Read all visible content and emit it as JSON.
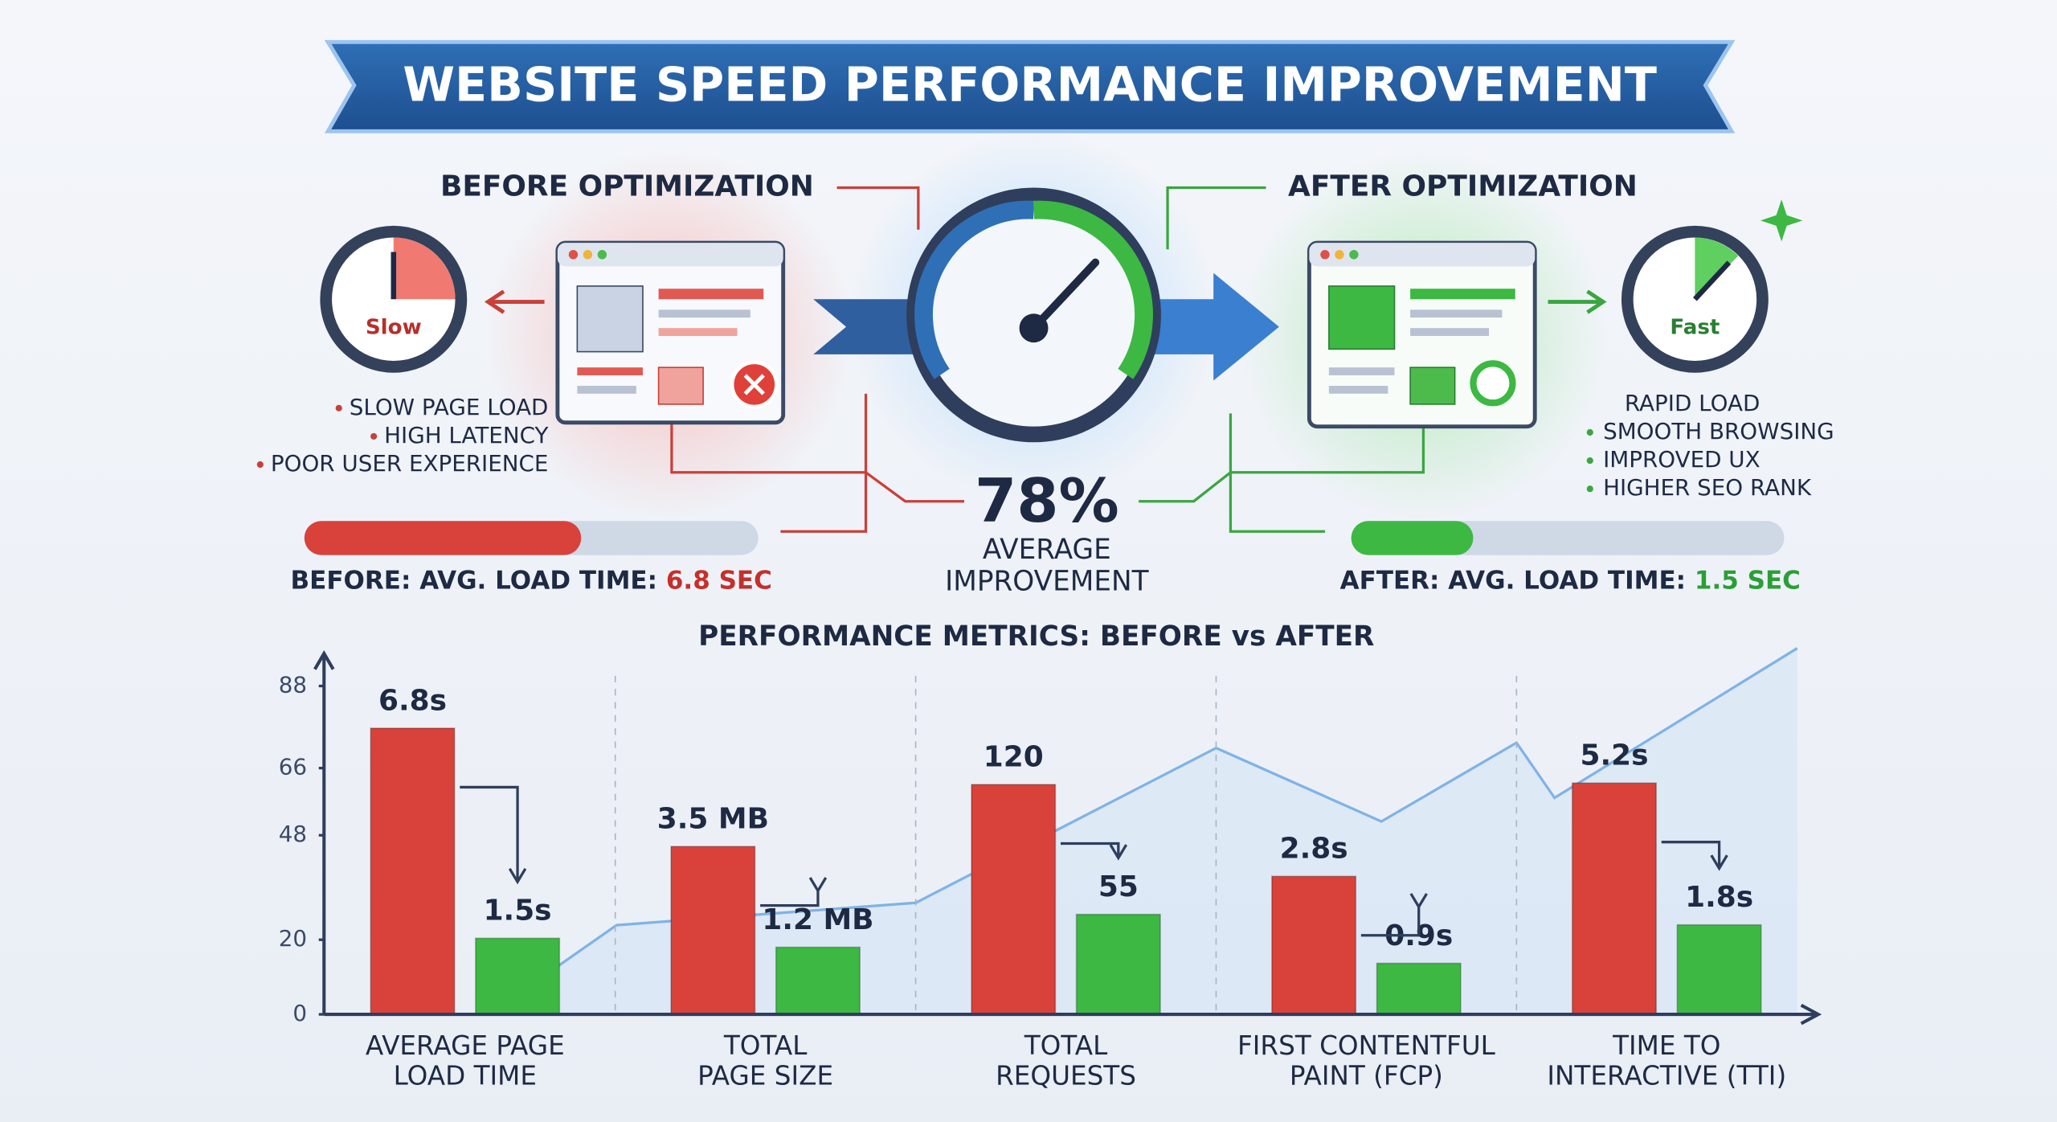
{
  "header": {
    "title": "WEBSITE SPEED PERFORMANCE IMPROVEMENT"
  },
  "before": {
    "heading": "BEFORE OPTIMIZATION",
    "clock_label": "Slow",
    "points": [
      "SLOW PAGE LOAD",
      "HIGH LATENCY",
      "POOR USER EXPERIENCE"
    ],
    "summary_label": "BEFORE: AVG. LOAD TIME:",
    "summary_value": "6.8 SEC"
  },
  "after": {
    "heading": "AFTER OPTIMIZATION",
    "clock_label": "Fast",
    "points": [
      "RAPID LOAD",
      "SMOOTH BROWSING",
      "IMPROVED UX",
      "HIGHER SEO RANK"
    ],
    "summary_label": "AFTER: AVG. LOAD TIME:",
    "summary_value": "1.5 SEC"
  },
  "center": {
    "improvement": "78%",
    "caption": [
      "AVERAGE",
      "IMPROVEMENT"
    ]
  },
  "chart_data": {
    "type": "bar",
    "title": "PERFORMANCE METRICS: BEFORE vs AFTER",
    "categories": [
      [
        "AVERAGE PAGE",
        "LOAD TIME"
      ],
      [
        "TOTAL",
        "PAGE SIZE"
      ],
      [
        "TOTAL",
        "REQUESTS"
      ],
      [
        "FIRST CONTENTFUL",
        "PAINT (FCP)"
      ],
      [
        "TIME TO",
        "INTERACTIVE (TTI)"
      ]
    ],
    "series": [
      {
        "color": "#d9413b",
        "values": [
          76.7,
          45,
          61.6,
          37,
          62
        ],
        "value_labels": [
          "6.8s",
          "3.5 MB",
          "120",
          "2.8s",
          "5.2s"
        ]
      },
      {
        "color": "#3cb843",
        "values": [
          20.4,
          18,
          26.8,
          13.7,
          24
        ],
        "value_labels": [
          "1.5s",
          "1.2 MB",
          "55",
          "0.9s",
          "1.8s"
        ]
      }
    ],
    "ylim": [
      0,
      96
    ],
    "yticks": [
      0,
      20,
      48,
      66,
      88
    ]
  }
}
